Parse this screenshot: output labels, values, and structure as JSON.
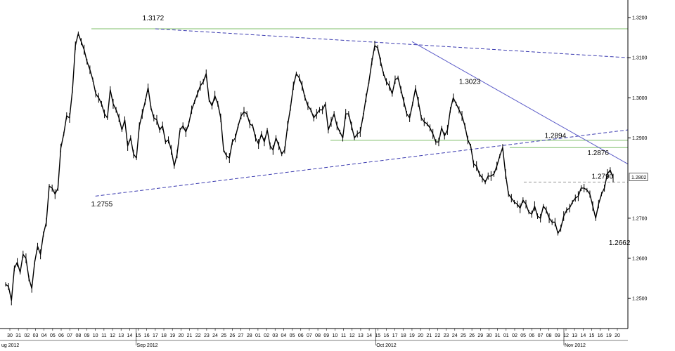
{
  "chart_data": {
    "type": "line",
    "title": "",
    "xlabel": "",
    "ylabel": "",
    "ylim": [
      1.2425,
      1.3235
    ],
    "y_ticks": [
      "1.3200",
      "1.3100",
      "1.3000",
      "1.2900",
      "1.2700",
      "1.2600",
      "1.2500"
    ],
    "current_price_label": "1.2802",
    "day_labels": [
      "30",
      "31",
      "02",
      "03",
      "04",
      "05",
      "06",
      "07",
      "08",
      "09",
      "10",
      "11",
      "12",
      "13",
      "14",
      "15",
      "16",
      "17",
      "18",
      "19",
      "20",
      "21",
      "22",
      "23",
      "24",
      "25",
      "26",
      "27",
      "28",
      "01",
      "02",
      "03",
      "04",
      "05",
      "06",
      "07",
      "08",
      "09",
      "10",
      "11",
      "12",
      "13",
      "14",
      "15",
      "16",
      "17",
      "18",
      "19",
      "20",
      "21",
      "22",
      "23",
      "24",
      "25",
      "26",
      "29",
      "30",
      "31",
      "01",
      "02",
      "05",
      "06",
      "07",
      "08",
      "09",
      "12",
      "13",
      "14",
      "15",
      "16",
      "19",
      "20"
    ],
    "month_labels": [
      "ug 2012",
      "Sep 2012",
      "Oct 2012",
      "Nov 2012"
    ],
    "month_label_day_index": [
      0,
      15,
      43,
      65
    ],
    "grid": false,
    "series": [
      {
        "values": [
          1.2535,
          1.253,
          1.2495,
          1.2575,
          1.259,
          1.2565,
          1.261,
          1.26,
          1.255,
          1.2525,
          1.259,
          1.263,
          1.261,
          1.266,
          1.269,
          1.278,
          1.2775,
          1.276,
          1.2775,
          1.2875,
          1.291,
          1.2955,
          1.295,
          1.302,
          1.313,
          1.316,
          1.314,
          1.312,
          1.309,
          1.307,
          1.3045,
          1.301,
          1.3,
          1.2985,
          1.296,
          1.295,
          1.302,
          1.2985,
          1.297,
          1.295,
          1.292,
          1.2945,
          1.288,
          1.29,
          1.286,
          1.285,
          1.293,
          1.296,
          1.299,
          1.3025,
          1.2975,
          1.295,
          1.2945,
          1.292,
          1.293,
          1.289,
          1.2895,
          1.287,
          1.283,
          1.286,
          1.292,
          1.293,
          1.2915,
          1.2935,
          1.297,
          1.299,
          1.301,
          1.303,
          1.304,
          1.306,
          1.2995,
          1.298,
          1.3005,
          1.2985,
          1.295,
          1.287,
          1.2855,
          1.285,
          1.289,
          1.29,
          1.293,
          1.2955,
          1.2965,
          1.296,
          1.2935,
          1.293,
          1.29,
          1.2885,
          1.291,
          1.289,
          1.292,
          1.288,
          1.287,
          1.29,
          1.288,
          1.286,
          1.287,
          1.293,
          1.2975,
          1.303,
          1.306,
          1.305,
          1.303,
          1.3,
          1.298,
          1.297,
          1.295,
          1.296,
          1.297,
          1.297,
          1.2985,
          1.292,
          1.294,
          1.296,
          1.293,
          1.2915,
          1.29,
          1.296,
          1.296,
          1.293,
          1.29,
          1.291,
          1.2915,
          1.2955,
          1.3,
          1.304,
          1.309,
          1.313,
          1.3125,
          1.309,
          1.306,
          1.304,
          1.303,
          1.301,
          1.3045,
          1.305,
          1.302,
          1.299,
          1.296,
          1.295,
          1.2985,
          1.3023,
          1.299,
          1.295,
          1.294,
          1.2935,
          1.2925,
          1.291,
          1.289,
          1.289,
          1.2925,
          1.2905,
          1.292,
          1.297,
          1.3,
          1.2985,
          1.297,
          1.2955,
          1.293,
          1.2895,
          1.288,
          1.2835,
          1.283,
          1.281,
          1.28,
          1.279,
          1.2805,
          1.2805,
          1.281,
          1.283,
          1.2855,
          1.2876,
          1.281,
          1.276,
          1.275,
          1.274,
          1.2735,
          1.2725,
          1.2745,
          1.2735,
          1.2715,
          1.271,
          1.273,
          1.2705,
          1.27,
          1.273,
          1.272,
          1.27,
          1.269,
          1.269,
          1.2662,
          1.2675,
          1.2705,
          1.272,
          1.2725,
          1.274,
          1.275,
          1.2755,
          1.2775,
          1.2775,
          1.277,
          1.276,
          1.273,
          1.27,
          1.2735,
          1.276,
          1.2775,
          1.281,
          1.282,
          1.28
        ]
      }
    ],
    "horizontal_levels": [
      {
        "value": 1.3172,
        "color": "#7fbf6a",
        "dashed": false
      },
      {
        "value": 1.2894,
        "color": "#7fbf6a",
        "dashed": false
      },
      {
        "value": 1.2876,
        "color": "#7fbf6a",
        "dashed": false
      },
      {
        "value": 1.279,
        "color": "#9a9a9a",
        "dashed": true
      }
    ],
    "trend_lines": [
      {
        "from": [
          17,
          1.3172
        ],
        "to": [
          72,
          1.31
        ],
        "color": "#3b3bb0",
        "dashed": true
      },
      {
        "from": [
          47,
          1.314
        ],
        "to": [
          72,
          1.2835
        ],
        "color": "#5a5ac8",
        "dashed": false
      },
      {
        "from": [
          10,
          1.2755
        ],
        "to": [
          72,
          1.292
        ],
        "color": "#3b3bb0",
        "dashed": true
      }
    ],
    "annotations": [
      {
        "text": "1.3172",
        "x": 15.5,
        "y": 1.3198
      },
      {
        "text": "1.2755",
        "x": 9.5,
        "y": 1.2735
      },
      {
        "text": "1.3023",
        "x": 52.5,
        "y": 1.304
      },
      {
        "text": "1.2894",
        "x": 62.5,
        "y": 1.2905
      },
      {
        "text": "1.2876",
        "x": 67.5,
        "y": 1.2862
      },
      {
        "text": "1.2790",
        "x": 68.0,
        "y": 1.2804
      },
      {
        "text": "1.2662",
        "x": 70.0,
        "y": 1.2638
      }
    ],
    "colors": {
      "price": "#000000",
      "support_level": "#7fbf6a",
      "trend": "#3b3bb0",
      "axis": "#000000",
      "price_box": "#ffffff"
    }
  }
}
